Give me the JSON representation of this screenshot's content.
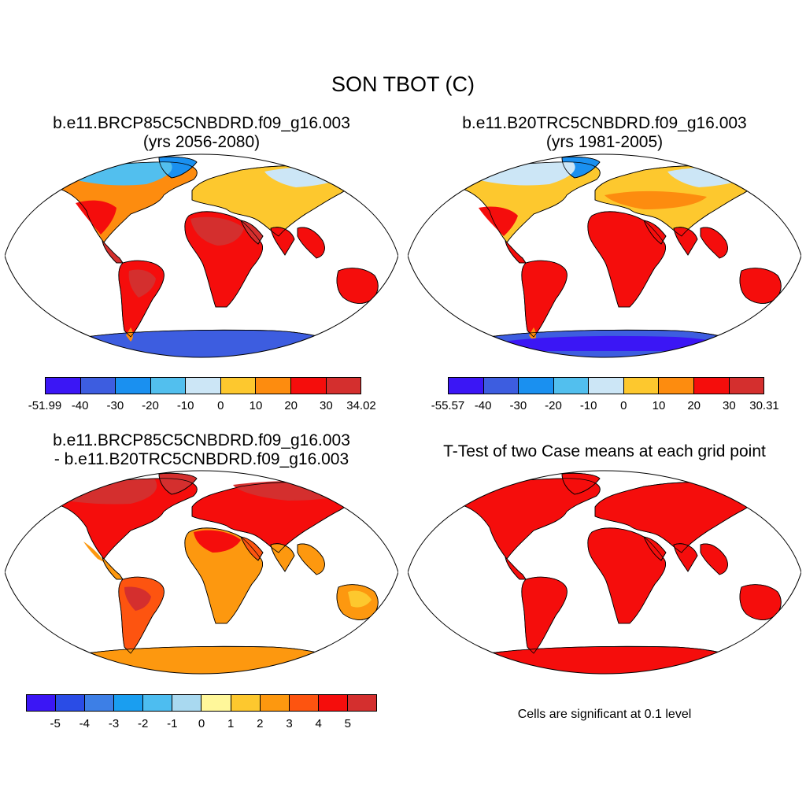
{
  "figure": {
    "title": "SON TBOT (C)"
  },
  "panels": [
    {
      "id": "future",
      "title_line1": "b.e11.BRCP85C5CNBDRD.f09_g16.003",
      "title_line2": "(yrs 2056-2080)",
      "colorbar": {
        "colors": [
          "#3b16f5",
          "#3d5de0",
          "#1a90f0",
          "#52bfee",
          "#cce6f6",
          "#fdc82e",
          "#fd8c0f",
          "#f50d0c",
          "#d42f2e"
        ],
        "labels": [
          "-51.99",
          "-40",
          "-30",
          "-20",
          "-10",
          "0",
          "10",
          "20",
          "30",
          "34.02"
        ]
      }
    },
    {
      "id": "historical",
      "title_line1": "b.e11.B20TRC5CNBDRD.f09_g16.003",
      "title_line2": "(yrs 1981-2005)",
      "colorbar": {
        "colors": [
          "#3b16f5",
          "#3d5de0",
          "#1a90f0",
          "#52bfee",
          "#cce6f6",
          "#fdc82e",
          "#fd8c0f",
          "#f50d0c",
          "#d42f2e"
        ],
        "labels": [
          "-55.57",
          "-40",
          "-30",
          "-20",
          "-10",
          "0",
          "10",
          "20",
          "30",
          "30.31"
        ]
      }
    },
    {
      "id": "difference",
      "title_line1": "b.e11.BRCP85C5CNBDRD.f09_g16.003",
      "title_line2": "- b.e11.B20TRC5CNBDRD.f09_g16.003",
      "colorbar": {
        "colors": [
          "#3b16f5",
          "#2a4ce6",
          "#3d7fe6",
          "#1a9ef0",
          "#4dbdf0",
          "#a9d9f0",
          "#fff79a",
          "#fdc82e",
          "#fd980f",
          "#fd5410",
          "#f50d0c",
          "#d42f2e"
        ],
        "labels": [
          "-5",
          "-4",
          "-3",
          "-2",
          "-1",
          "0",
          "1",
          "2",
          "3",
          "4",
          "5"
        ]
      }
    },
    {
      "id": "ttest",
      "title_line1": "T-Test of two Case means at each grid point",
      "note": "Cells are significant at 0.1 level",
      "colors": {
        "significant": "#f50d0c"
      }
    }
  ]
}
